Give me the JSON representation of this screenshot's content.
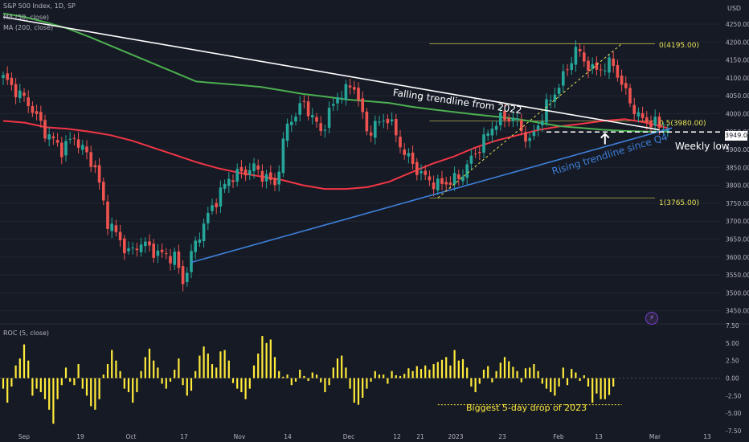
{
  "header": {
    "symbol_line": "S&P 500 Index, 1D, SP",
    "ma50_label": "MA (50, close)",
    "ma200_label": "MA (200, close)",
    "roc_label": "ROC (5, close)",
    "currency": "USD"
  },
  "annotations": {
    "falling": "Falling trendline from 2022",
    "rising": "Rising trendline since Q4",
    "weekly_low": "Weekly low",
    "biggest_drop": "Biggest 5-day drop of 2023",
    "price_tag": "3949.00"
  },
  "fib_labels": [
    "0(4195.00)",
    "0.5(3980.00)",
    "1(3765.00)"
  ],
  "colors": {
    "background": "#161a25",
    "up": "#26a69a",
    "down": "#ef5350",
    "ma50": "#f23645",
    "ma200": "#4caf50",
    "falling_line": "#ffffff",
    "rising_line": "#3d7fd9",
    "fib": "#e5e058",
    "roc": "#ffeb3b"
  },
  "chart_data": [
    {
      "type": "candlestick",
      "title": "S&P 500 Index, 1D, SP",
      "ylabel": "USD",
      "ylim": [
        3420,
        4295
      ],
      "y_ticks": [
        3450,
        3500,
        3550,
        3600,
        3650,
        3700,
        3750,
        3800,
        3850,
        3900,
        3950,
        4000,
        4050,
        4100,
        4150,
        4200,
        4250
      ],
      "x_tick_labels": [
        "Sep",
        "19",
        "Oct",
        "17",
        "Nov",
        "14",
        "Dec",
        "12",
        "21",
        "2023",
        "23",
        "Feb",
        "13",
        "Mar",
        "13"
      ],
      "series": [
        {
          "name": "MA (50, close)",
          "values": [
            3980,
            3975,
            3962,
            3958,
            3950,
            3940,
            3925,
            3905,
            3885,
            3865,
            3848,
            3835,
            3825,
            3815,
            3800,
            3790,
            3790,
            3795,
            3810,
            3835,
            3860,
            3880,
            3905,
            3925,
            3940,
            3955,
            3965,
            3972,
            3980,
            3985,
            3975,
            3960
          ]
        },
        {
          "name": "MA (200, close)",
          "values": [
            4280,
            4270,
            4255,
            4238,
            4215,
            4190,
            4165,
            4140,
            4115,
            4090,
            4085,
            4080,
            4075,
            4065,
            4055,
            4048,
            4040,
            4035,
            4030,
            4020,
            4012,
            4005,
            3998,
            3992,
            3985,
            3975,
            3965,
            3960,
            3955,
            3952,
            3950,
            3950
          ]
        }
      ],
      "trendlines": [
        {
          "name": "Falling trendline from 2022",
          "from": [
            0,
            4270
          ],
          "to": [
            157,
            3955
          ]
        },
        {
          "name": "Rising trendline since Q4",
          "from": [
            45,
            3585
          ],
          "to": [
            160,
            3960
          ]
        }
      ],
      "fibonacci": [
        {
          "level": "0",
          "price": 4195.0
        },
        {
          "level": "0.5",
          "price": 3980.0
        },
        {
          "level": "1",
          "price": 3765.0
        }
      ],
      "last_price": 3949.0,
      "weekly_low_marker": {
        "x": 144,
        "price": 3955
      }
    },
    {
      "type": "bar",
      "title": "ROC (5, close)",
      "ylim": [
        -7.5,
        7.5
      ],
      "y_ticks": [
        7.5,
        5.0,
        2.5,
        0.0,
        -2.5,
        -5.0,
        -7.5
      ],
      "values": [
        -1.5,
        -3.5,
        -1.2,
        1.8,
        2.8,
        4.8,
        2.5,
        -2.5,
        -1.5,
        -2.0,
        -3.0,
        -4.5,
        -6.5,
        -3.0,
        -1.0,
        1.5,
        -0.5,
        -1.0,
        2.0,
        -1.5,
        -2.5,
        -4.0,
        -4.5,
        -3.0,
        0.5,
        2.0,
        4.0,
        2.5,
        1.0,
        -1.5,
        -2.0,
        -3.5,
        -2.0,
        1.0,
        3.0,
        4.2,
        2.5,
        1.5,
        -0.8,
        -1.5,
        -0.5,
        1.2,
        2.8,
        -1.0,
        -2.5,
        -1.8,
        1.0,
        3.2,
        4.5,
        3.5,
        2.0,
        1.5,
        3.8,
        4.0,
        2.5,
        -0.7,
        -1.5,
        -2.0,
        -3.0,
        -1.5,
        1.8,
        3.5,
        6.0,
        5.0,
        5.5,
        3.0,
        1.0,
        0.2,
        0.5,
        -1.0,
        -0.5,
        1.2,
        0.3,
        -0.4,
        0.8,
        0.5,
        -0.6,
        -2.0,
        -1.0,
        1.5,
        2.8,
        3.2,
        1.5,
        -1.5,
        -3.5,
        -3.8,
        -2.8,
        -1.5,
        -0.5,
        1.0,
        0.5,
        0.5,
        -0.8,
        1.0,
        0.4,
        0.3,
        0.6,
        1.4,
        1.0,
        1.7,
        1.3,
        1.8,
        1.2,
        2.0,
        2.3,
        2.6,
        3.0,
        1.8,
        4.0,
        2.5,
        2.7,
        1.5,
        -1.2,
        -2.0,
        -0.8,
        1.2,
        1.7,
        -0.6,
        1.0,
        2.2,
        3.0,
        2.4,
        1.6,
        1.0,
        -0.6,
        1.4,
        1.5,
        2.0,
        1.0,
        -0.8,
        -1.5,
        -2.0,
        -2.5,
        -1.2,
        1.5,
        -1.0,
        1.3,
        0.8,
        -0.4,
        0.4,
        -1.2,
        -3.5,
        -2.2,
        -3.0,
        -3.0,
        -2.4,
        -1.2
      ],
      "annotation": {
        "text": "Biggest 5-day drop of 2023",
        "level": -3.8
      }
    }
  ]
}
